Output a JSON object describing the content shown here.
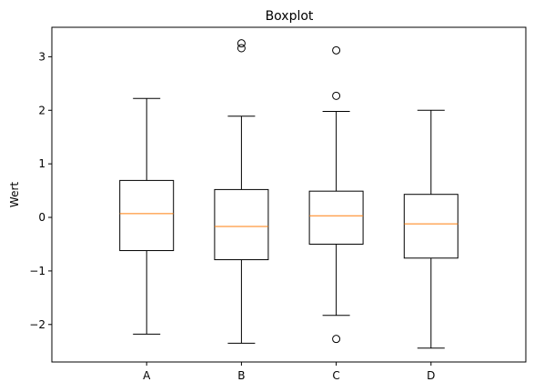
{
  "chart_data": {
    "type": "boxplot",
    "title": "Boxplot",
    "xlabel": "",
    "ylabel": "Wert",
    "ylim": [
      -2.7,
      3.55
    ],
    "yticks": [
      -2,
      -1,
      0,
      1,
      2,
      3
    ],
    "grid": false,
    "colors": {
      "box": "#000000",
      "median": "#ff7f0e",
      "background": "#ffffff"
    },
    "boxes": [
      {
        "label": "A",
        "whisker_low": -2.18,
        "q1": -0.62,
        "median": 0.07,
        "q3": 0.69,
        "whisker_high": 2.22,
        "outliers": []
      },
      {
        "label": "B",
        "whisker_low": -2.35,
        "q1": -0.79,
        "median": -0.17,
        "q3": 0.52,
        "whisker_high": 1.89,
        "outliers": [
          3.16,
          3.25
        ]
      },
      {
        "label": "C",
        "whisker_low": -1.83,
        "q1": -0.5,
        "median": 0.03,
        "q3": 0.49,
        "whisker_high": 1.98,
        "outliers": [
          2.27,
          3.12,
          -2.27
        ]
      },
      {
        "label": "D",
        "whisker_low": -2.44,
        "q1": -0.76,
        "median": -0.12,
        "q3": 0.43,
        "whisker_high": 2.0,
        "outliers": []
      }
    ]
  }
}
